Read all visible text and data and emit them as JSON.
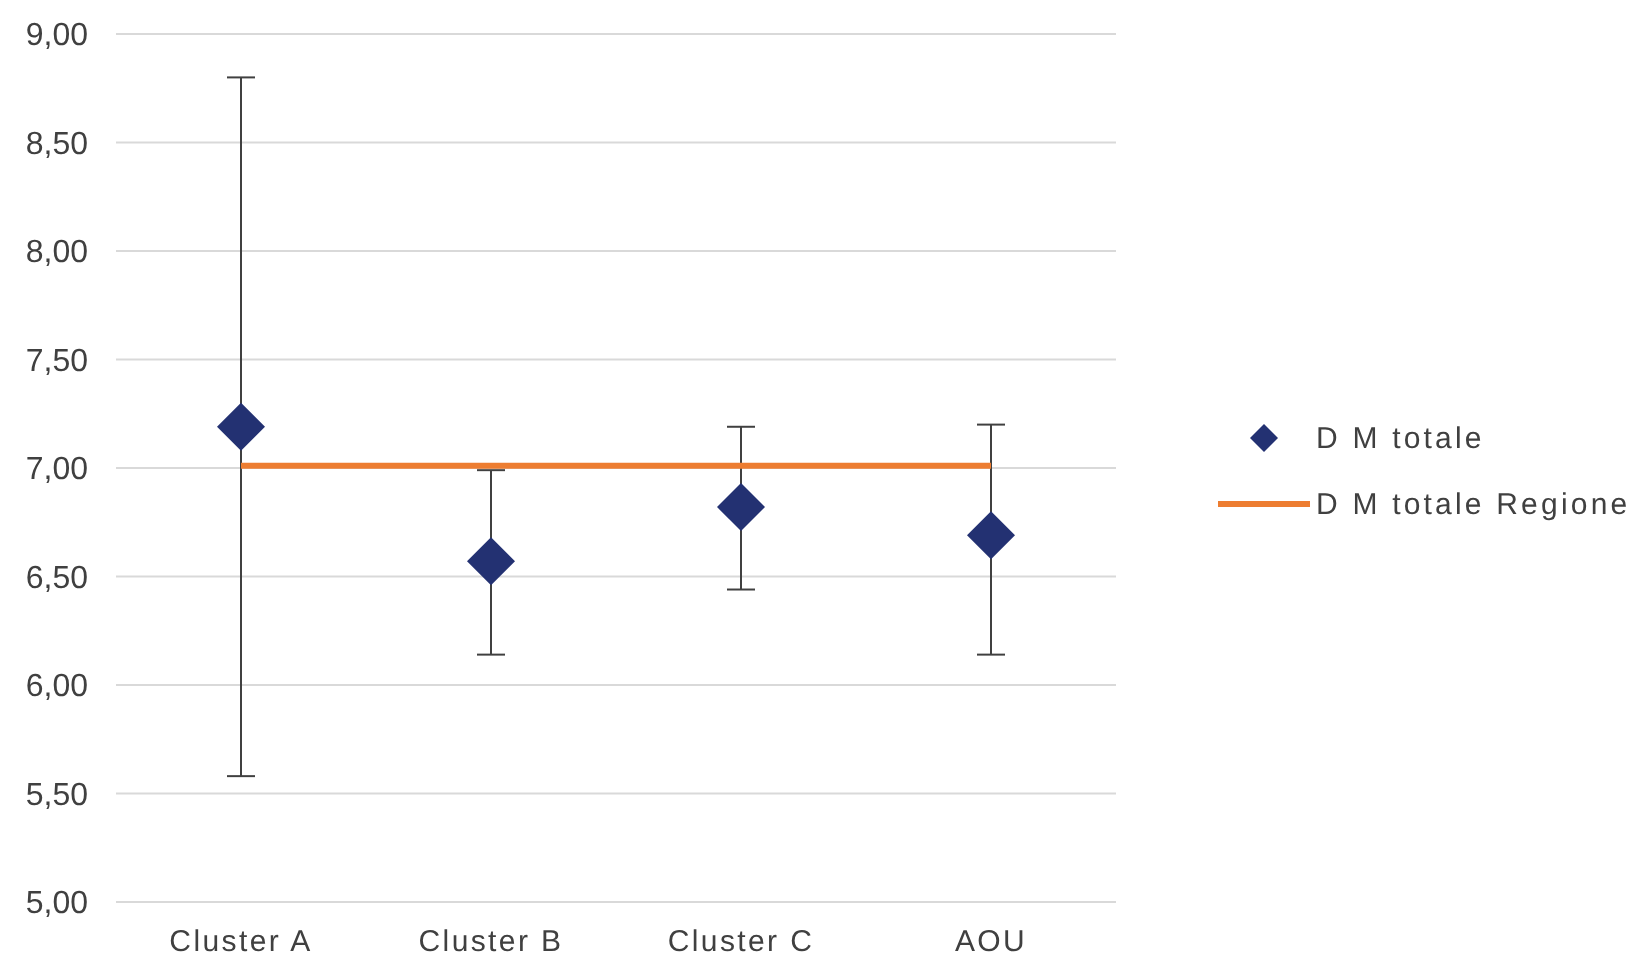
{
  "chart_data": {
    "type": "scatter",
    "categories": [
      "Cluster A",
      "Cluster B",
      "Cluster C",
      "AOU"
    ],
    "series": [
      {
        "name": "D M totale",
        "color": "#233172",
        "marker": "diamond",
        "values": [
          7.19,
          6.57,
          6.82,
          6.69
        ],
        "errors": [
          [
            5.58,
            8.8
          ],
          [
            6.14,
            6.99
          ],
          [
            6.44,
            7.19
          ],
          [
            6.14,
            7.2
          ]
        ]
      },
      {
        "name": "D M totale Regione",
        "type": "line",
        "color": "#ed7d31",
        "marker": "none",
        "values": [
          7.01,
          7.01,
          7.01,
          7.01
        ]
      }
    ],
    "ylim": [
      5,
      9
    ],
    "yticks": [
      {
        "value": 5,
        "label": "5,00"
      },
      {
        "value": 5.5,
        "label": "5,50"
      },
      {
        "value": 6,
        "label": "6,00"
      },
      {
        "value": 6.5,
        "label": "6,50"
      },
      {
        "value": 7,
        "label": "7,00"
      },
      {
        "value": 7.5,
        "label": "7,50"
      },
      {
        "value": 8,
        "label": "8,00"
      },
      {
        "value": 8.5,
        "label": "8,50"
      },
      {
        "value": 9,
        "label": "9,00"
      }
    ],
    "grid": "y",
    "legend": "right"
  }
}
